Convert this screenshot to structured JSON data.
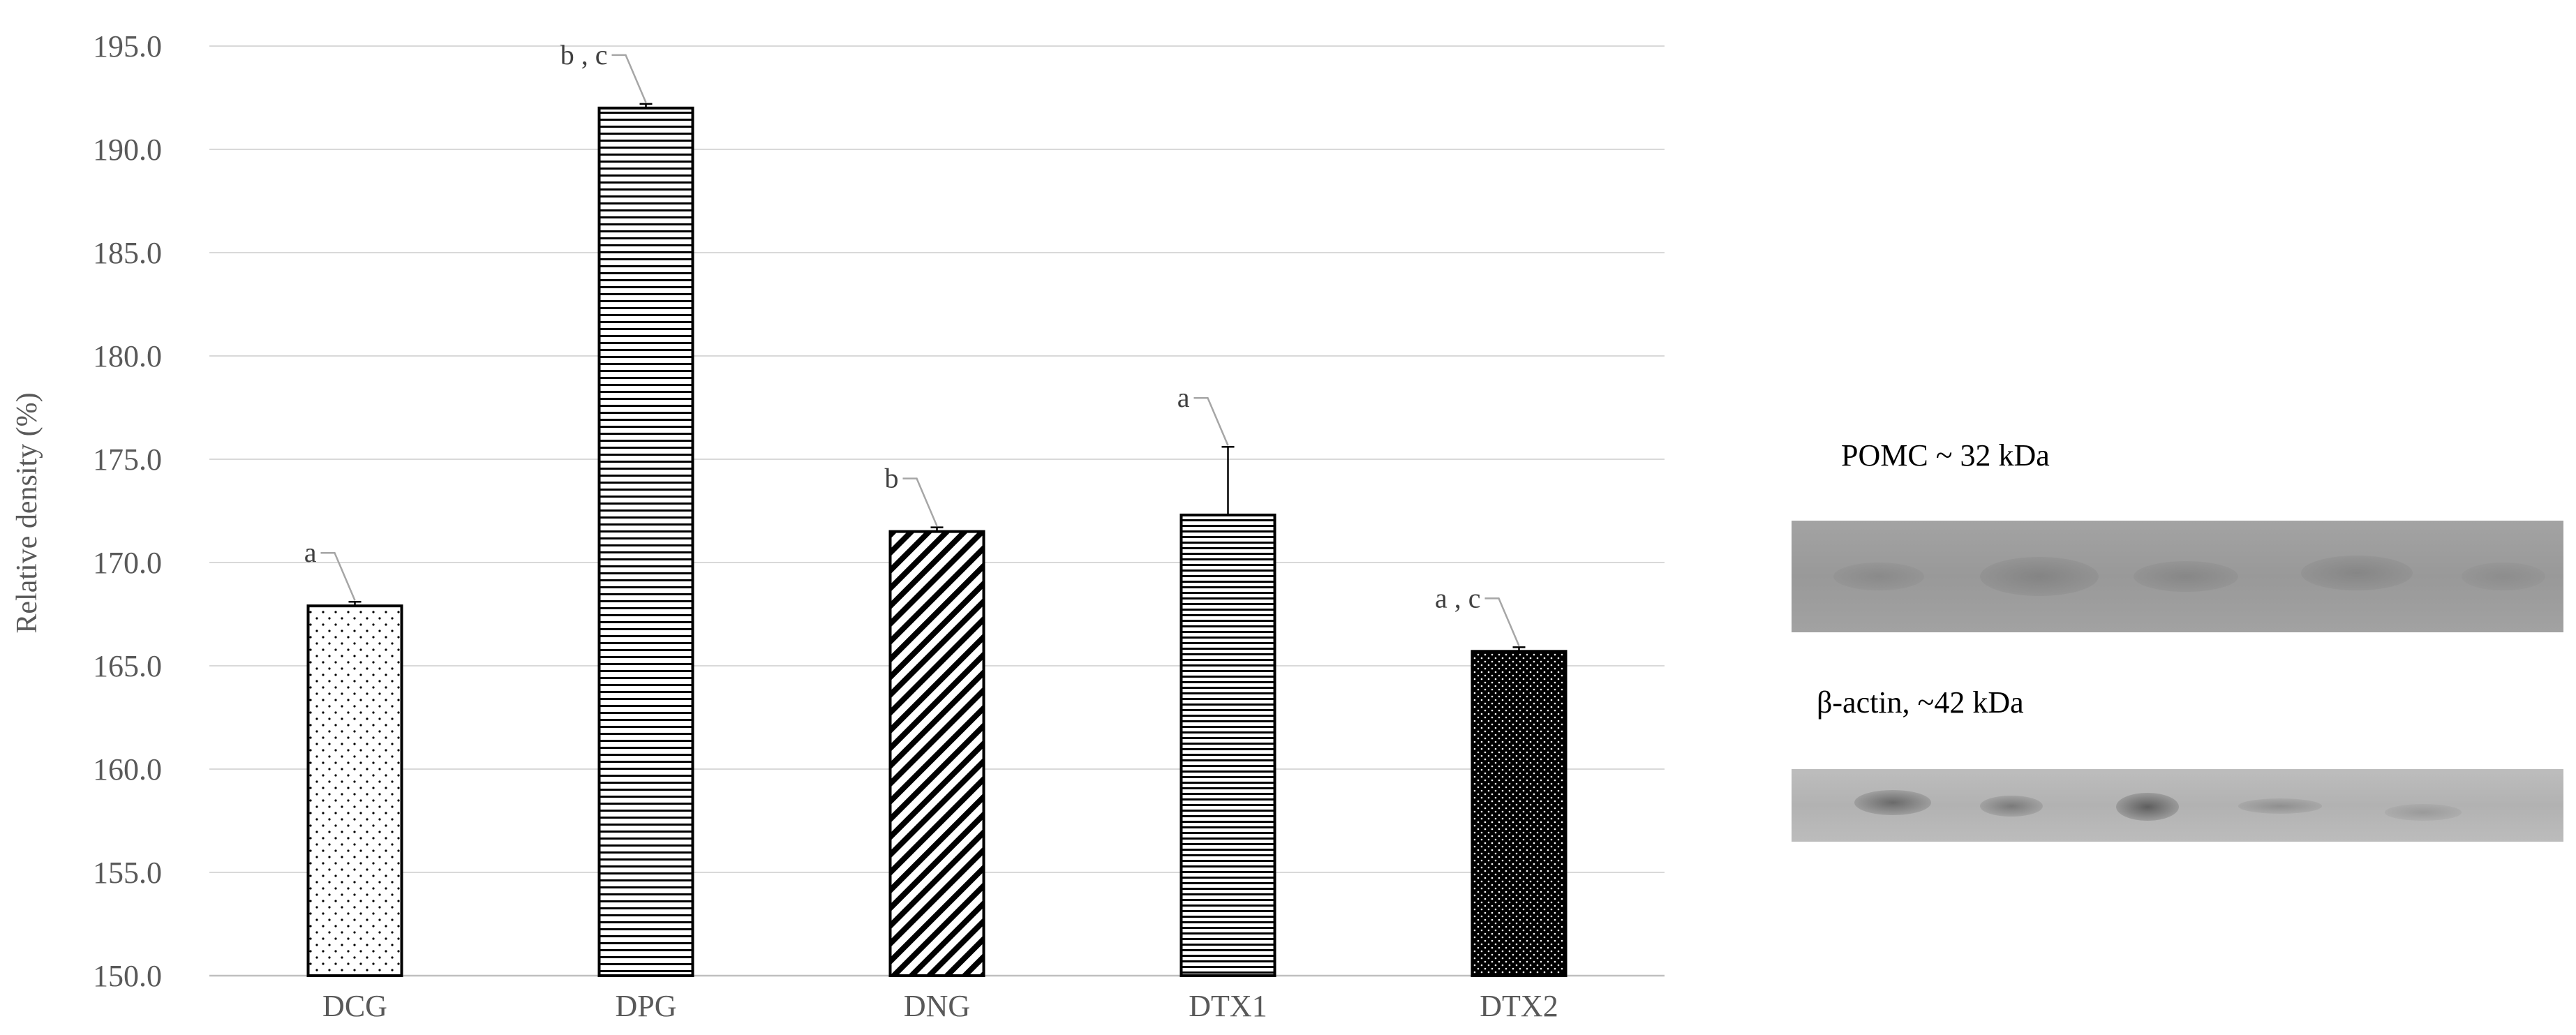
{
  "chart_data": {
    "type": "bar",
    "categories": [
      "DCG",
      "DPG",
      "DNG",
      "DTX1",
      "DTX2"
    ],
    "values": [
      167.9,
      192.0,
      171.5,
      172.3,
      165.7
    ],
    "errors": [
      0.2,
      0.2,
      0.2,
      3.3,
      0.2
    ],
    "significance": [
      "a",
      "b , c",
      "b",
      "a",
      "a , c"
    ],
    "patterns": [
      "dots-light",
      "h-lines",
      "diagonal",
      "h-lines-dense",
      "dots-dense"
    ],
    "ylabel": "Relative density (%)",
    "ylim": [
      150.0,
      195.0
    ],
    "yticks": [
      "150.0",
      "155.0",
      "160.0",
      "165.0",
      "170.0",
      "175.0",
      "180.0",
      "185.0",
      "190.0",
      "195.0"
    ],
    "grid": true
  },
  "blot": {
    "pomc_label": "POMC ~ 32 kDa",
    "actin_label": "β-actin, ~42 kDa",
    "lanes": 5
  }
}
